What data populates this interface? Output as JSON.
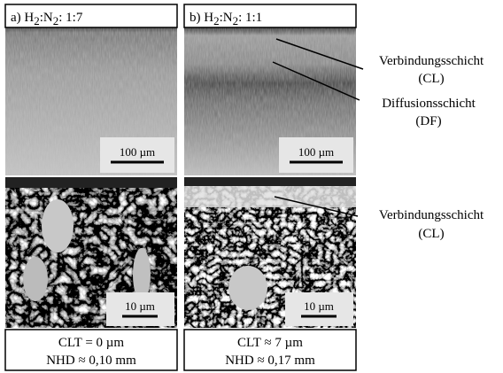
{
  "panels": [
    {
      "label_parts": [
        "a) H",
        "2",
        ":N",
        "2",
        ": 1:7"
      ],
      "scale_top": "100 µm",
      "scale_bottom": "10 µm",
      "caption": [
        "CLT = 0 µm",
        "NHD ≈ 0,10 mm"
      ]
    },
    {
      "label_parts": [
        "b) H",
        "2",
        ":N",
        "2",
        ": 1:1"
      ],
      "scale_top": "100 µm",
      "scale_bottom": "10 µm",
      "caption": [
        "CLT ≈ 7 µm",
        "NHD ≈ 0,17 mm"
      ]
    }
  ],
  "annotations": [
    {
      "lines": [
        "Verbindungsschicht",
        "(CL)"
      ]
    },
    {
      "lines": [
        "Diffusionsschicht",
        "(DF)"
      ]
    },
    {
      "lines": [
        "Verbindungsschicht",
        "(CL)"
      ]
    }
  ]
}
